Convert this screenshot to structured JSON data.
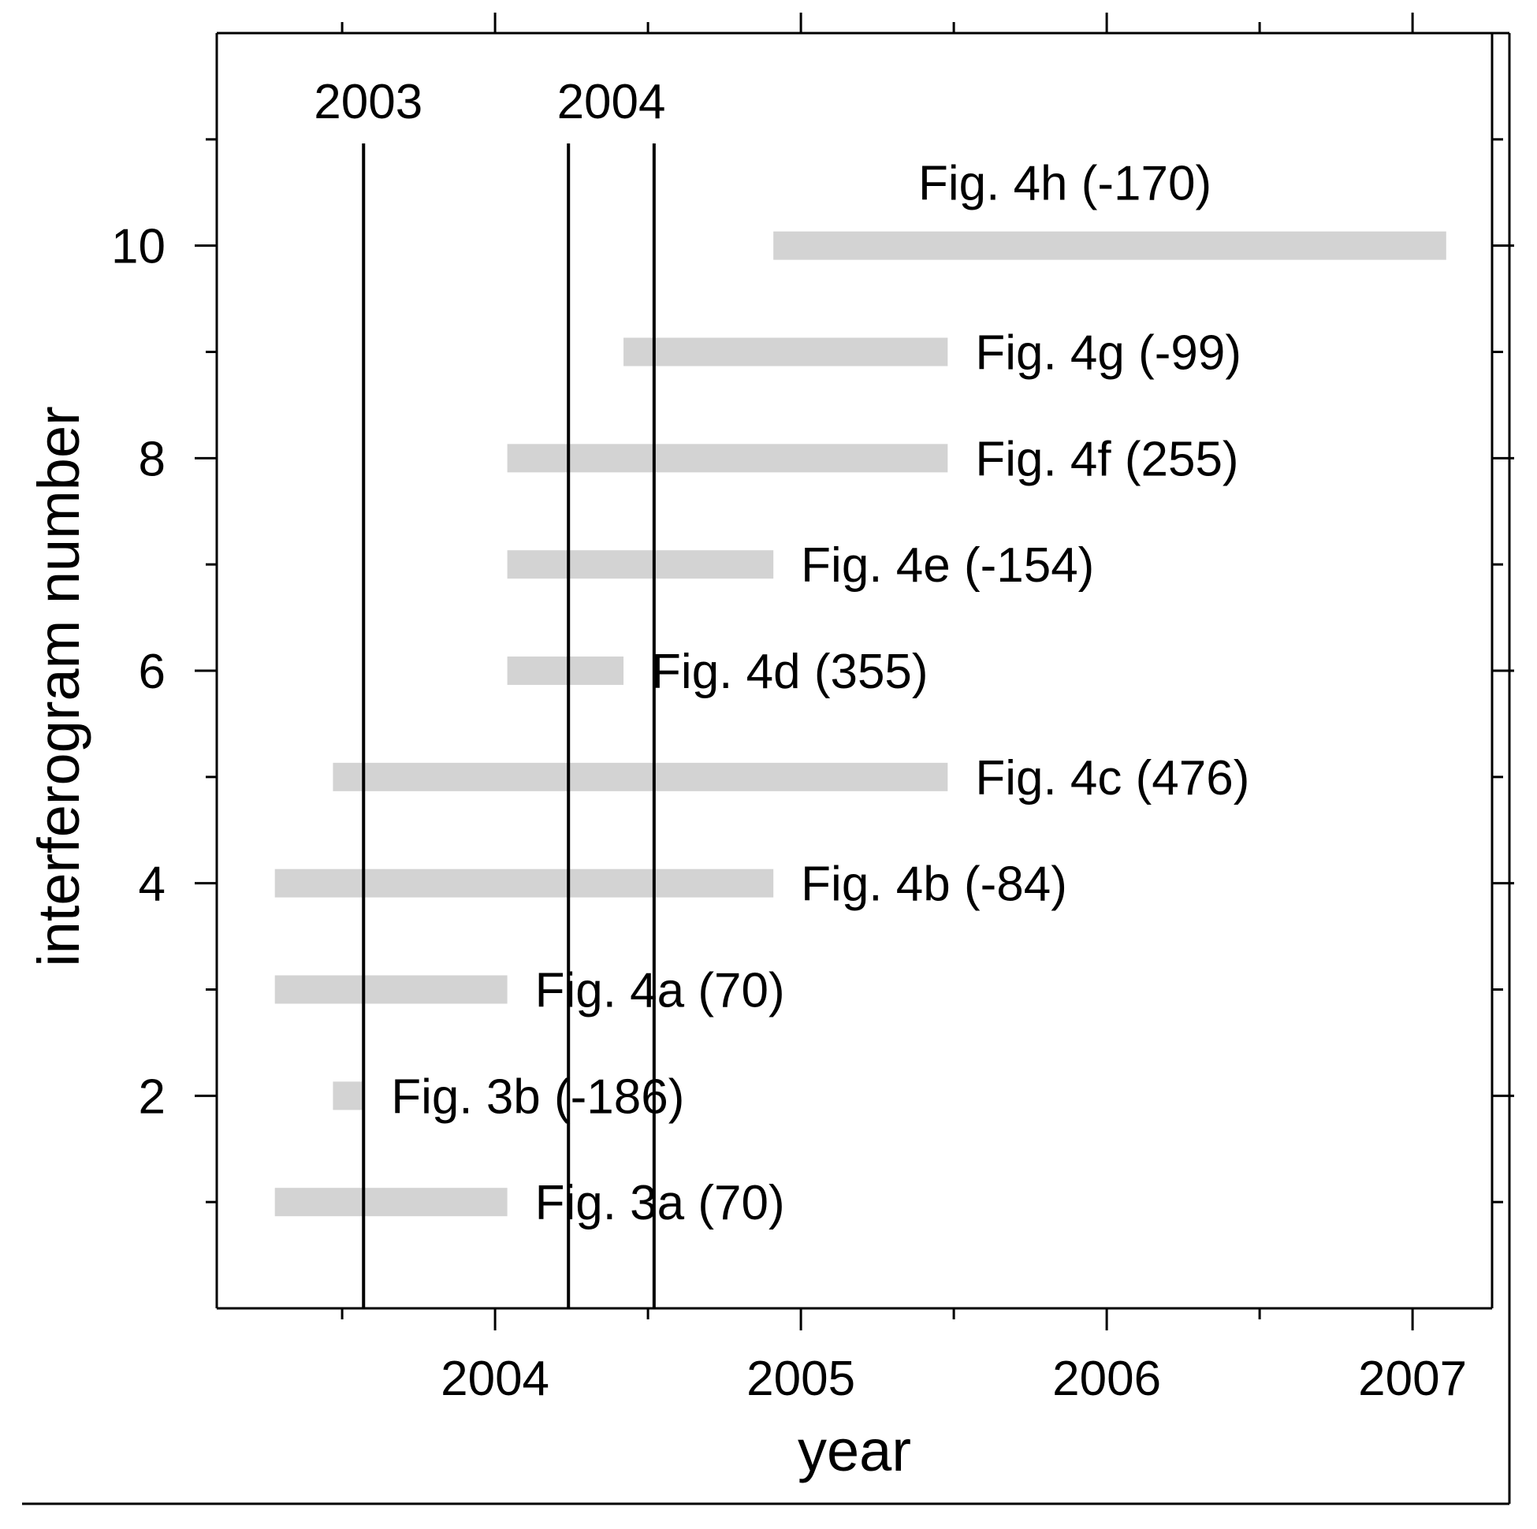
{
  "chart_data": {
    "type": "bar",
    "orientation": "horizontal-range",
    "xlabel": "year",
    "ylabel": "interferogram number",
    "xlim": [
      2003.09,
      2007.26
    ],
    "ylim": [
      0,
      12
    ],
    "x_ticks_labeled": [
      "2004",
      "2005",
      "2006",
      "2007"
    ],
    "x_tick_values": [
      2004,
      2005,
      2006,
      2007
    ],
    "y_ticks_labeled": [
      "2",
      "4",
      "6",
      "8",
      "10"
    ],
    "y_tick_values": [
      2,
      4,
      6,
      8,
      10
    ],
    "bar_color": "#d3d3d3",
    "grid": false,
    "event_lines": [
      {
        "x": 2003.57,
        "label": "2003"
      },
      {
        "x": 2004.24,
        "label": ""
      },
      {
        "x": 2004.52,
        "label": ""
      }
    ],
    "event_group_label": {
      "text": "2004",
      "x": 2004.38
    },
    "bars": [
      {
        "y": 1,
        "start": 2003.28,
        "end": 2004.04,
        "label": "Fig. 3a (70)"
      },
      {
        "y": 2,
        "start": 2003.47,
        "end": 2003.57,
        "label": "Fig. 3b (-186)"
      },
      {
        "y": 3,
        "start": 2003.28,
        "end": 2004.04,
        "label": "Fig. 4a (70)"
      },
      {
        "y": 4,
        "start": 2003.28,
        "end": 2004.91,
        "label": "Fig. 4b (-84)"
      },
      {
        "y": 5,
        "start": 2003.47,
        "end": 2005.48,
        "label": "Fig. 4c (476)"
      },
      {
        "y": 6,
        "start": 2004.04,
        "end": 2004.42,
        "label": "Fig. 4d (355)"
      },
      {
        "y": 7,
        "start": 2004.04,
        "end": 2004.91,
        "label": "Fig. 4e (-154)"
      },
      {
        "y": 8,
        "start": 2004.04,
        "end": 2005.48,
        "label": "Fig. 4f (255)"
      },
      {
        "y": 9,
        "start": 2004.42,
        "end": 2005.48,
        "label": "Fig. 4g (-99)"
      },
      {
        "y": 10,
        "start": 2004.91,
        "end": 2007.11,
        "label": "Fig. 4h (-170)"
      }
    ]
  }
}
